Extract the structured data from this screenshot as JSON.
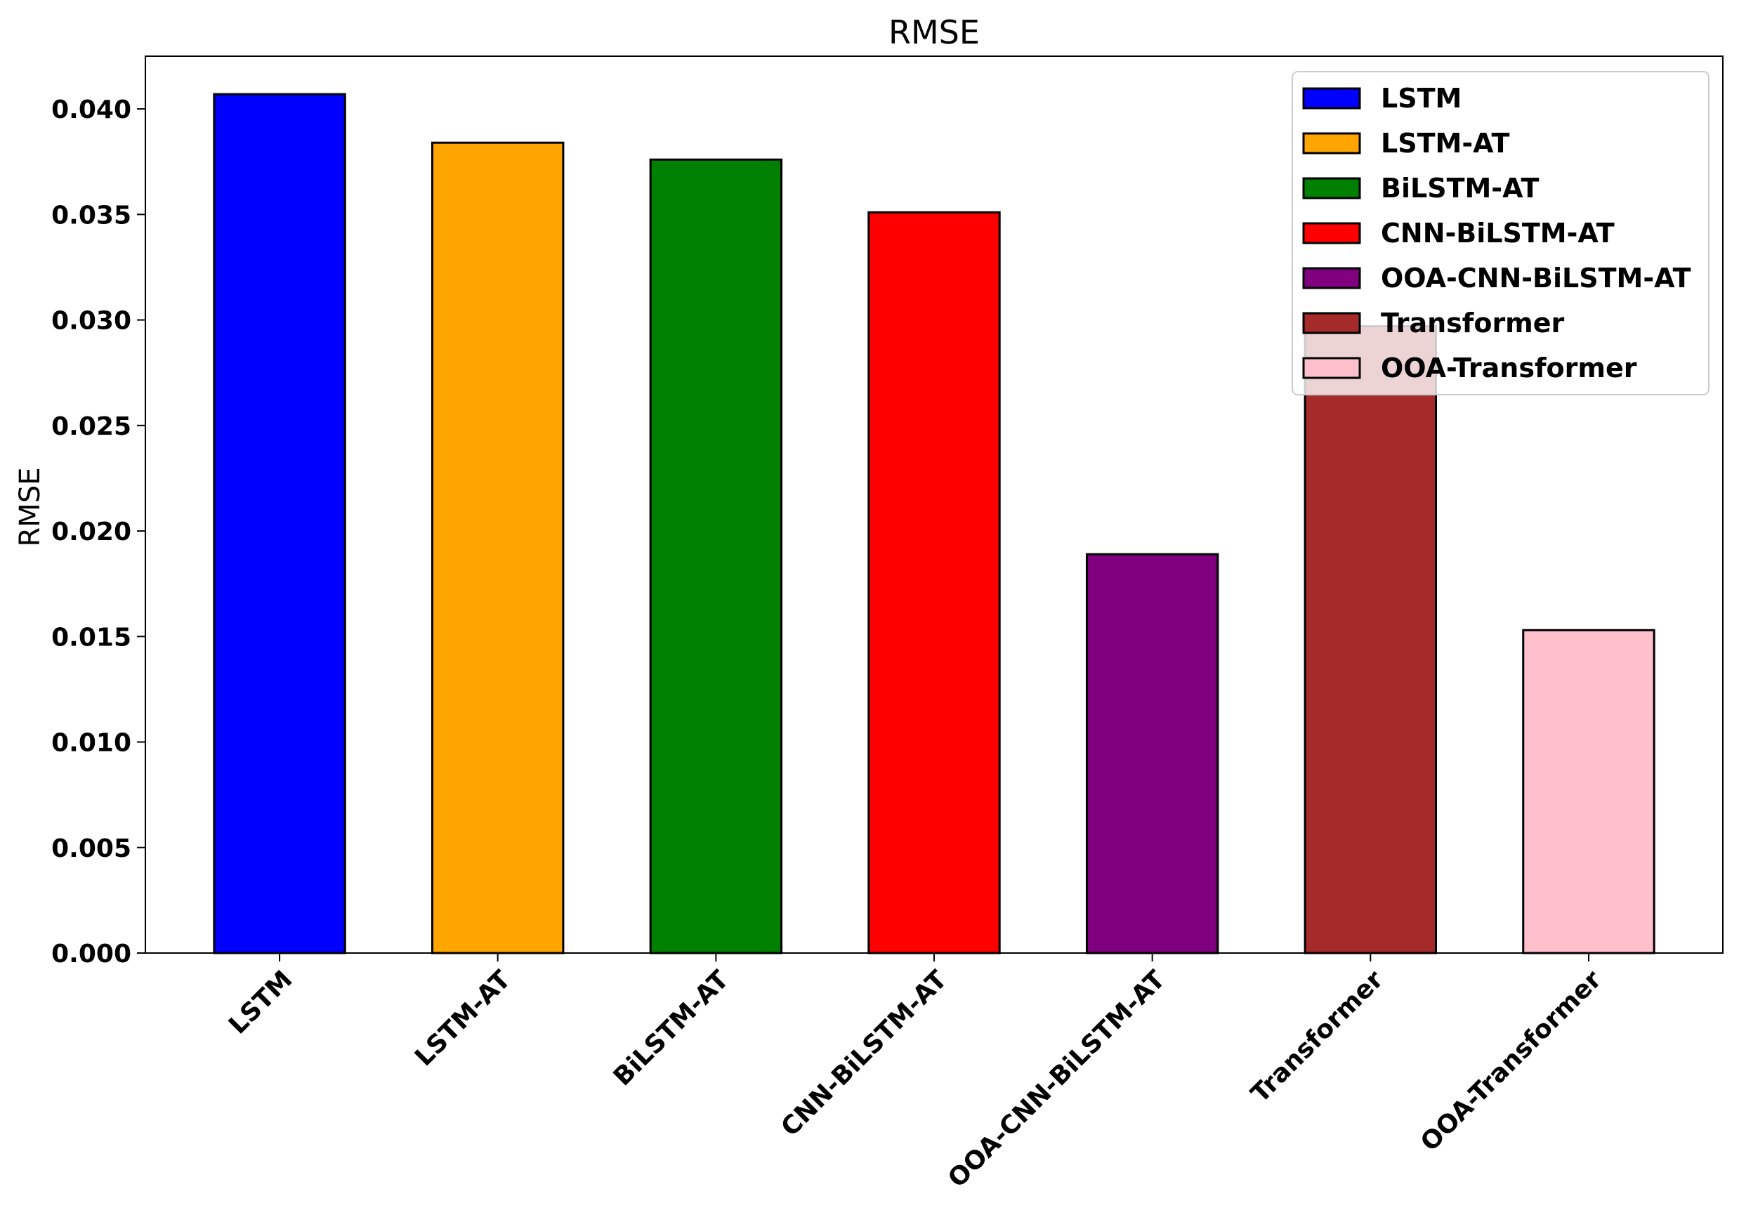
{
  "chart_data": {
    "type": "bar",
    "title": "RMSE",
    "xlabel": "",
    "ylabel": "RMSE",
    "ylim": [
      0,
      0.0425
    ],
    "yticks": [
      "0.000",
      "0.005",
      "0.010",
      "0.015",
      "0.020",
      "0.025",
      "0.030",
      "0.035",
      "0.040"
    ],
    "grid": false,
    "legend_position": "top-right",
    "categories": [
      "LSTM",
      "LSTM-AT",
      "BiLSTM-AT",
      "CNN-BiLSTM-AT",
      "OOA-CNN-BiLSTM-AT",
      "Transformer",
      "OOA-Transformer"
    ],
    "values": [
      0.0407,
      0.0384,
      0.0376,
      0.0351,
      0.0189,
      0.0297,
      0.0153
    ],
    "colors": [
      "#0000ff",
      "#ffa500",
      "#008000",
      "#ff0000",
      "#800080",
      "#a52a2a",
      "#ffc0cb"
    ],
    "legend": [
      "LSTM",
      "LSTM-AT",
      "BiLSTM-AT",
      "CNN-BiLSTM-AT",
      "OOA-CNN-BiLSTM-AT",
      "Transformer",
      "OOA-Transformer"
    ]
  }
}
